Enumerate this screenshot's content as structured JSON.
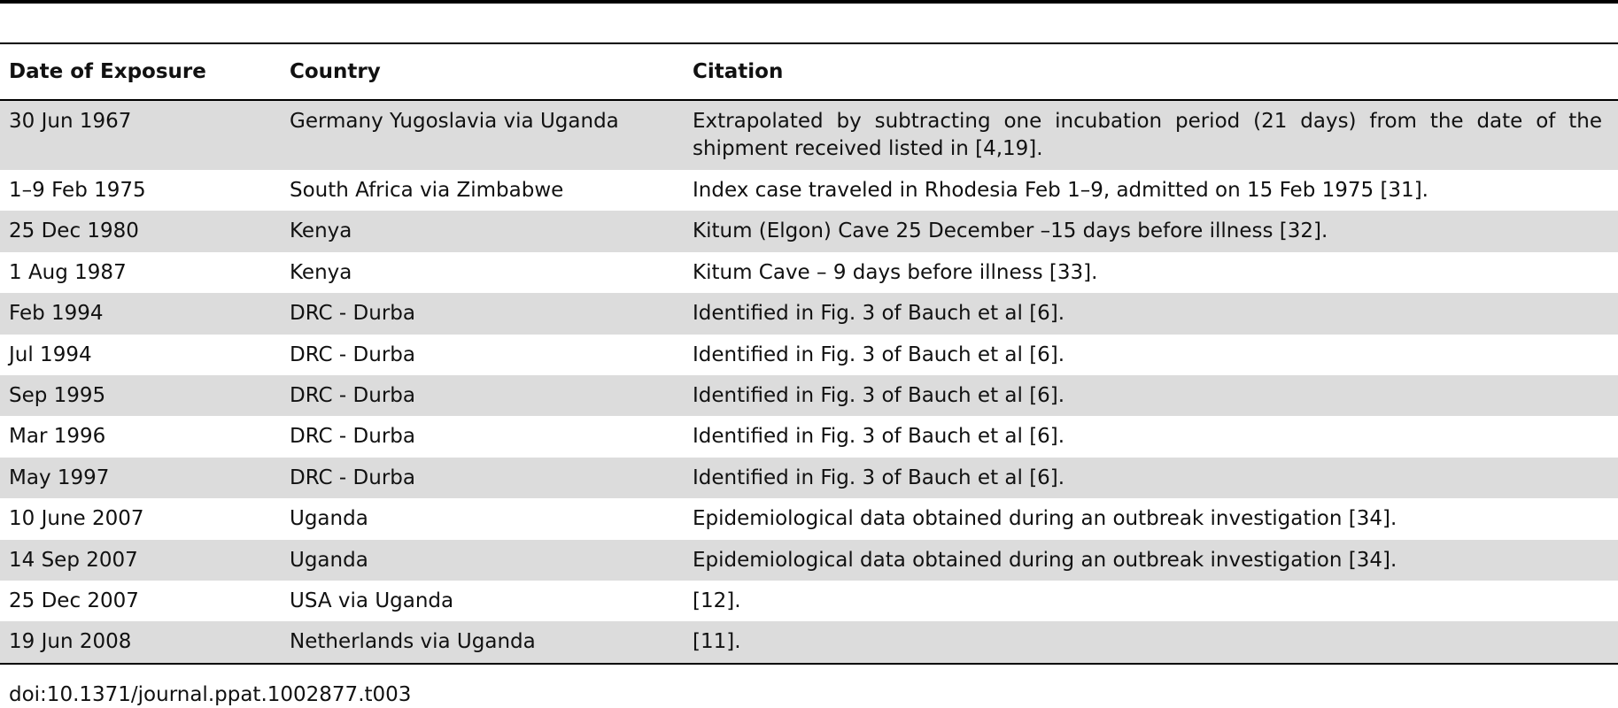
{
  "table": {
    "headers": {
      "date": "Date of Exposure",
      "country": "Country",
      "citation": "Citation"
    },
    "rows": [
      {
        "date": "30 Jun 1967",
        "country": "Germany Yugoslavia via Uganda",
        "citation": "Extrapolated by subtracting one incubation period (21 days) from the date of the shipment received listed in [4,19]."
      },
      {
        "date": "1–9 Feb 1975",
        "country": "South Africa via Zimbabwe",
        "citation": "Index case traveled in Rhodesia Feb 1–9, admitted on 15 Feb 1975 [31]."
      },
      {
        "date": "25 Dec 1980",
        "country": "Kenya",
        "citation": "Kitum (Elgon) Cave 25 December –15 days before illness [32]."
      },
      {
        "date": "1 Aug 1987",
        "country": "Kenya",
        "citation": "Kitum Cave – 9 days before illness [33]."
      },
      {
        "date": "Feb 1994",
        "country": "DRC - Durba",
        "citation": "Identified in Fig. 3 of Bauch et al [6]."
      },
      {
        "date": "Jul 1994",
        "country": "DRC - Durba",
        "citation": "Identified in Fig. 3 of Bauch et al [6]."
      },
      {
        "date": "Sep 1995",
        "country": "DRC - Durba",
        "citation": "Identified in Fig. 3 of Bauch et al [6]."
      },
      {
        "date": "Mar 1996",
        "country": "DRC - Durba",
        "citation": "Identified in Fig. 3 of Bauch et al [6]."
      },
      {
        "date": "May 1997",
        "country": "DRC - Durba",
        "citation": "Identified in Fig. 3 of Bauch et al [6]."
      },
      {
        "date": "10 June 2007",
        "country": "Uganda",
        "citation": "Epidemiological data obtained during an outbreak investigation [34]."
      },
      {
        "date": "14 Sep 2007",
        "country": "Uganda",
        "citation": "Epidemiological data obtained during an outbreak investigation [34]."
      },
      {
        "date": "25 Dec 2007",
        "country": "USA via Uganda",
        "citation": "[12]."
      },
      {
        "date": "19 Jun 2008",
        "country": "Netherlands via Uganda",
        "citation": "[11]."
      }
    ]
  },
  "footer": {
    "doi": "doi:10.1371/journal.ppat.1002877.t003"
  },
  "colors": {
    "row_shade": "#dcdcdc",
    "rule": "#000000",
    "text": "#111111"
  }
}
